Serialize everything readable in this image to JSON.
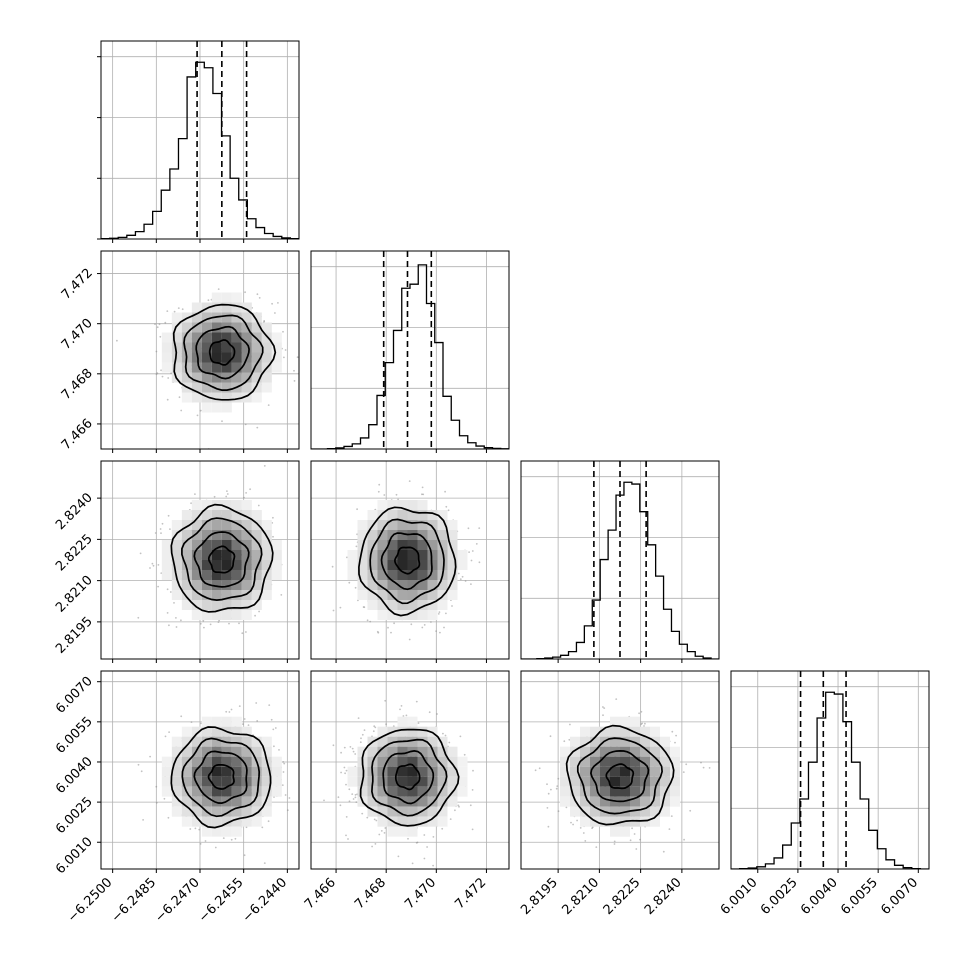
{
  "chart_data": {
    "type": "corner",
    "quantiles": [
      0.16,
      0.5,
      0.84
    ],
    "grid": true,
    "parameters": [
      {
        "mean": -6.24625,
        "sd": 0.00085,
        "range": [
          -6.2504,
          -6.2436
        ],
        "ticks": [
          -6.25,
          -6.2485,
          -6.247,
          -6.2455,
          -6.244
        ],
        "tick_labels": [
          "−6.2500",
          "−6.2485",
          "−6.2470",
          "−6.2455",
          "−6.2440"
        ],
        "quantile_values": [
          -6.2471,
          -6.24625,
          -6.2454
        ]
      },
      {
        "mean": 7.46885,
        "sd": 0.00095,
        "range": [
          7.465,
          7.4729
        ],
        "ticks": [
          7.466,
          7.468,
          7.47,
          7.472
        ],
        "tick_labels": [
          "7.466",
          "7.468",
          "7.470",
          "7.472"
        ],
        "quantile_values": [
          7.4679,
          7.46885,
          7.4698
        ]
      },
      {
        "mean": 2.82175,
        "sd": 0.00095,
        "range": [
          2.81815,
          2.82535
        ],
        "ticks": [
          2.8195,
          2.821,
          2.8225,
          2.824
        ],
        "tick_labels": [
          "2.8195",
          "2.8210",
          "2.8225",
          "2.8240"
        ],
        "quantile_values": [
          2.8208,
          2.82175,
          2.8227
        ]
      },
      {
        "mean": 6.00345,
        "sd": 0.0009,
        "range": [
          6.0,
          6.0074
        ],
        "ticks": [
          6.001,
          6.0025,
          6.004,
          6.0055,
          6.007
        ],
        "tick_labels": [
          "6.0010",
          "6.0025",
          "6.0040",
          "6.0055",
          "6.0070"
        ],
        "quantile_values": [
          6.0026,
          6.00345,
          6.0043
        ]
      }
    ],
    "histograms": [
      [
        2,
        4,
        9,
        20,
        40,
        80,
        150,
        265,
        380,
        545,
        880,
        960,
        930,
        790,
        560,
        330,
        212,
        110,
        62,
        30,
        14,
        6,
        2
      ],
      [
        0,
        0,
        2,
        6,
        14,
        28,
        60,
        132,
        291,
        469,
        644,
        873,
        895,
        1000,
        790,
        578,
        286,
        156,
        72,
        34,
        16,
        7,
        3,
        1
      ],
      [
        0,
        0,
        2,
        5,
        10,
        20,
        40,
        90,
        180,
        320,
        540,
        700,
        890,
        960,
        950,
        800,
        620,
        450,
        270,
        150,
        80,
        40,
        15,
        5,
        0
      ],
      [
        0,
        2,
        5,
        12,
        28,
        60,
        130,
        250,
        380,
        580,
        820,
        960,
        950,
        800,
        580,
        380,
        210,
        110,
        50,
        20,
        7,
        2,
        0
      ]
    ],
    "hist_max": 1000
  }
}
